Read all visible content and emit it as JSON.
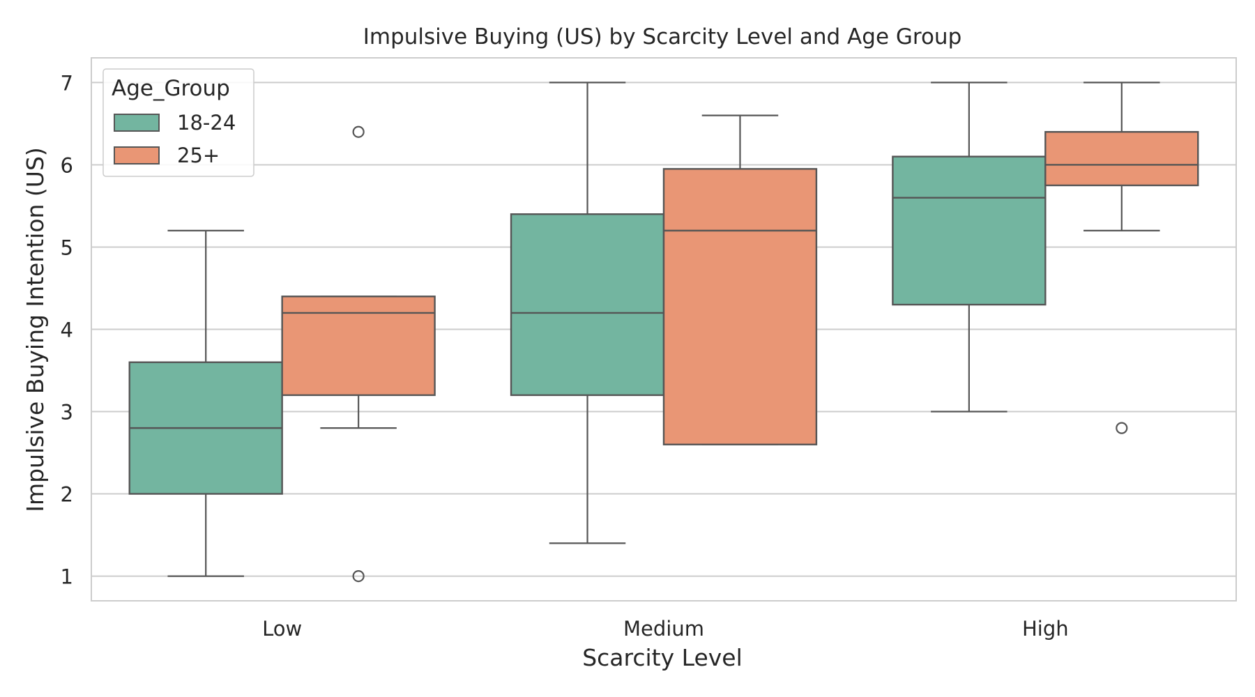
{
  "chart_data": {
    "type": "box",
    "title": "Impulsive Buying (US) by Scarcity Level and Age Group",
    "xlabel": "Scarcity Level",
    "ylabel": "Impulsive Buying Intention (US)",
    "categories": [
      "Low",
      "Medium",
      "High"
    ],
    "ylim": [
      0.7,
      7.3
    ],
    "yticks": [
      1,
      2,
      3,
      4,
      5,
      6,
      7
    ],
    "grid": true,
    "legend": {
      "title": "Age_Group",
      "position": "top-left"
    },
    "series": [
      {
        "name": "18-24",
        "color": "#73b5a0",
        "boxes": [
          {
            "category": "Low",
            "whisker_low": 1.0,
            "q1": 2.0,
            "median": 2.8,
            "q3": 3.6,
            "whisker_high": 5.2,
            "outliers": []
          },
          {
            "category": "Medium",
            "whisker_low": 1.4,
            "q1": 3.2,
            "median": 4.2,
            "q3": 5.4,
            "whisker_high": 7.0,
            "outliers": []
          },
          {
            "category": "High",
            "whisker_low": 3.0,
            "q1": 4.3,
            "median": 5.6,
            "q3": 6.1,
            "whisker_high": 7.0,
            "outliers": []
          }
        ]
      },
      {
        "name": "25+",
        "color": "#e99675",
        "boxes": [
          {
            "category": "Low",
            "whisker_low": 2.8,
            "q1": 3.2,
            "median": 4.2,
            "q3": 4.4,
            "whisker_high": 4.4,
            "outliers": [
              6.4,
              1.0
            ]
          },
          {
            "category": "Medium",
            "whisker_low": 2.6,
            "q1": 2.6,
            "median": 5.2,
            "q3": 5.95,
            "whisker_high": 6.6,
            "outliers": []
          },
          {
            "category": "High",
            "whisker_low": 5.2,
            "q1": 5.75,
            "median": 6.0,
            "q3": 6.4,
            "whisker_high": 7.0,
            "outliers": [
              2.8
            ]
          }
        ]
      }
    ]
  }
}
